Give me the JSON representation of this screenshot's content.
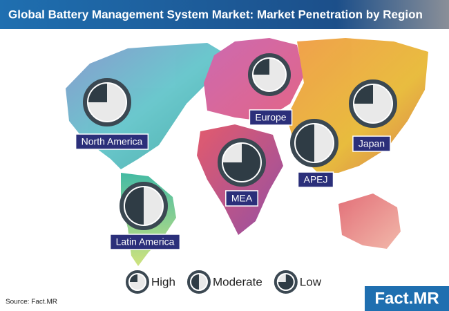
{
  "title": "Global Battery Management System Market: Market Penetration by Region",
  "regions": [
    {
      "name": "North America",
      "level": "High"
    },
    {
      "name": "Europe",
      "level": "High"
    },
    {
      "name": "Japan",
      "level": "High"
    },
    {
      "name": "APEJ",
      "level": "Moderate"
    },
    {
      "name": "MEA",
      "level": "Low"
    },
    {
      "name": "Latin America",
      "level": "Moderate"
    }
  ],
  "legend": {
    "items": [
      "High",
      "Moderate",
      "Low"
    ]
  },
  "source": "Source: Fact.MR",
  "logo": "Fact.MR"
}
